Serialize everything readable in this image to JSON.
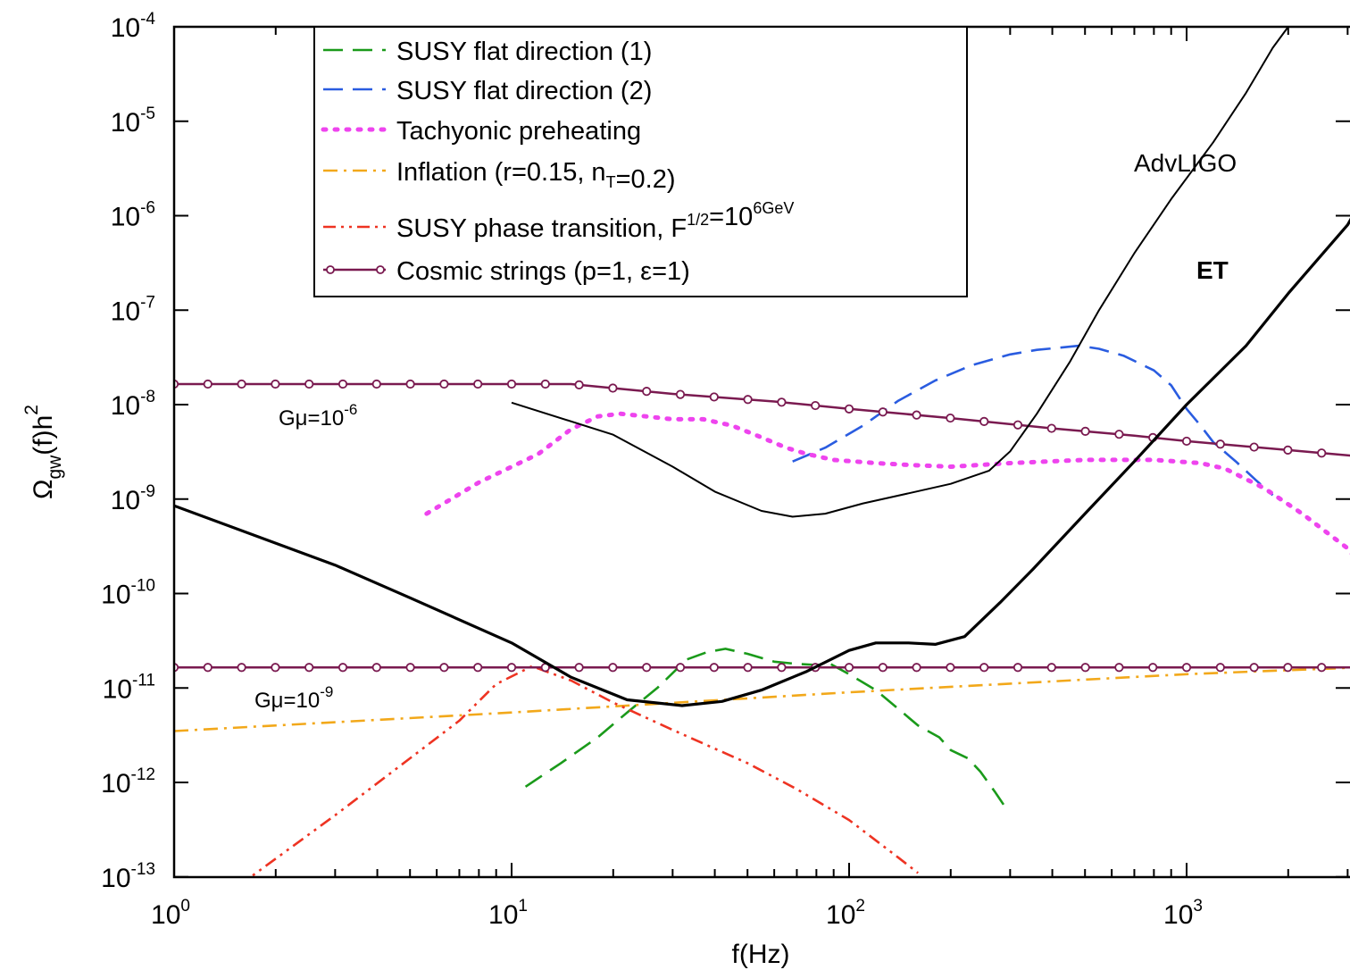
{
  "chart_data": {
    "type": "line",
    "xlabel": "f(Hz)",
    "ylabel": "Ω_gw(f)h^2",
    "x_scale": "log",
    "y_scale": "log",
    "xlim": [
      1,
      4000
    ],
    "ylim": [
      1e-13,
      0.0001
    ],
    "x_ticks": [
      {
        "value": 1,
        "base": "10",
        "exp": "0"
      },
      {
        "value": 10,
        "base": "10",
        "exp": "1"
      },
      {
        "value": 100,
        "base": "10",
        "exp": "2"
      },
      {
        "value": 1000,
        "base": "10",
        "exp": "3"
      }
    ],
    "y_ticks": [
      {
        "value": 0.0001,
        "base": "10",
        "exp": "-4"
      },
      {
        "value": 1e-05,
        "base": "10",
        "exp": "-5"
      },
      {
        "value": 1e-06,
        "base": "10",
        "exp": "-6"
      },
      {
        "value": 1e-07,
        "base": "10",
        "exp": "-7"
      },
      {
        "value": 1e-08,
        "base": "10",
        "exp": "-8"
      },
      {
        "value": 1e-09,
        "base": "10",
        "exp": "-9"
      },
      {
        "value": 1e-10,
        "base": "10",
        "exp": "-10"
      },
      {
        "value": 1e-11,
        "base": "10",
        "exp": "-11"
      },
      {
        "value": 1e-12,
        "base": "10",
        "exp": "-12"
      },
      {
        "value": 1e-13,
        "base": "10",
        "exp": "-13"
      }
    ],
    "grid": false,
    "legend_position": "top-left",
    "series": [
      {
        "name": "SUSY flat direction (1)",
        "color": "#1a9a1a",
        "style": "dashed",
        "points": [
          [
            11,
            9e-13
          ],
          [
            14,
            1.6e-12
          ],
          [
            18,
            3e-12
          ],
          [
            22,
            5.5e-12
          ],
          [
            27,
            1e-11
          ],
          [
            33,
            2e-11
          ],
          [
            38,
            2.4e-11
          ],
          [
            43,
            2.6e-11
          ],
          [
            50,
            2.3e-11
          ],
          [
            60,
            1.9e-11
          ],
          [
            70,
            1.8e-11
          ],
          [
            80,
            1.75e-11
          ],
          [
            88,
            1.8e-11
          ],
          [
            100,
            1.4e-11
          ],
          [
            120,
            9.5e-12
          ],
          [
            140,
            6e-12
          ],
          [
            160,
            4e-12
          ],
          [
            185,
            3e-12
          ],
          [
            200,
            2.2e-12
          ],
          [
            225,
            1.8e-12
          ],
          [
            245,
            1.3e-12
          ],
          [
            270,
            8e-13
          ],
          [
            290,
            5.5e-13
          ]
        ]
      },
      {
        "name": "SUSY flat direction (2)",
        "color": "#2a5ce0",
        "style": "dashed",
        "points": [
          [
            68,
            2.5e-09
          ],
          [
            85,
            3.5e-09
          ],
          [
            110,
            6e-09
          ],
          [
            140,
            1.1e-08
          ],
          [
            180,
            1.8e-08
          ],
          [
            230,
            2.6e-08
          ],
          [
            300,
            3.4e-08
          ],
          [
            360,
            3.8e-08
          ],
          [
            420,
            4e-08
          ],
          [
            480,
            4.2e-08
          ],
          [
            550,
            3.9e-08
          ],
          [
            650,
            3.3e-08
          ],
          [
            800,
            2.3e-08
          ],
          [
            900,
            1.6e-08
          ],
          [
            1000,
            9e-09
          ],
          [
            1100,
            6e-09
          ],
          [
            1200,
            4e-09
          ],
          [
            1400,
            2.5e-09
          ],
          [
            1600,
            1.6e-09
          ],
          [
            1800,
            1.1e-09
          ]
        ]
      },
      {
        "name": "Tachyonic preheating",
        "color": "#ee44ee",
        "style": "dotted",
        "points": [
          [
            5.6,
            7e-10
          ],
          [
            8,
            1.5e-09
          ],
          [
            12,
            3e-09
          ],
          [
            15,
            5.5e-09
          ],
          [
            18,
            7.5e-09
          ],
          [
            21,
            8e-09
          ],
          [
            25,
            7.5e-09
          ],
          [
            30,
            7e-09
          ],
          [
            37,
            7e-09
          ],
          [
            45,
            6e-09
          ],
          [
            55,
            4.5e-09
          ],
          [
            65,
            3.5e-09
          ],
          [
            75,
            3e-09
          ],
          [
            90,
            2.6e-09
          ],
          [
            120,
            2.4e-09
          ],
          [
            150,
            2.3e-09
          ],
          [
            200,
            2.2e-09
          ],
          [
            300,
            2.4e-09
          ],
          [
            500,
            2.6e-09
          ],
          [
            800,
            2.6e-09
          ],
          [
            1100,
            2.4e-09
          ],
          [
            1300,
            2.1e-09
          ],
          [
            1700,
            1.3e-09
          ],
          [
            2200,
            7e-10
          ],
          [
            3000,
            3e-10
          ],
          [
            4000,
            8e-11
          ]
        ]
      },
      {
        "name": "Inflation (r=0.15, n_T=0.2)",
        "color": "#f2a81a",
        "style": "dashdot",
        "points": [
          [
            1,
            3.5e-12
          ],
          [
            10,
            5.5e-12
          ],
          [
            100,
            9e-12
          ],
          [
            1000,
            1.4e-11
          ],
          [
            4000,
            1.7e-11
          ]
        ]
      },
      {
        "name": "SUSY phase transition, F^1/2=10^6GeV",
        "color": "#ee3322",
        "style": "dashdotdot",
        "points": [
          [
            1.55,
            8e-14
          ],
          [
            3,
            4.5e-13
          ],
          [
            5,
            1.8e-12
          ],
          [
            7,
            4.5e-12
          ],
          [
            9,
            1.1e-11
          ],
          [
            11.5,
            1.7e-11
          ],
          [
            15,
            1.2e-11
          ],
          [
            20,
            7e-12
          ],
          [
            30,
            3.6e-12
          ],
          [
            50,
            1.6e-12
          ],
          [
            70,
            8.5e-13
          ],
          [
            100,
            4e-13
          ],
          [
            140,
            1.6e-13
          ],
          [
            160,
            1.1e-13
          ]
        ]
      },
      {
        "name": "Cosmic strings (p=1, ε=1)",
        "color": "#7a1a50",
        "style": "solid-circles",
        "points": [
          [
            1,
            1.65e-08
          ],
          [
            15,
            1.65e-08
          ],
          [
            30,
            1.3e-08
          ],
          [
            60,
            1.08e-08
          ],
          [
            100,
            9e-09
          ],
          [
            200,
            7.2e-09
          ],
          [
            400,
            5.6e-09
          ],
          [
            700,
            4.7e-09
          ],
          [
            1000,
            4.1e-09
          ],
          [
            2000,
            3.3e-09
          ],
          [
            4000,
            2.65e-09
          ]
        ]
      },
      {
        "name": "Cosmic strings Gμ=10^-9",
        "color": "#7a1a50",
        "style": "solid-circles",
        "points": [
          [
            1,
            1.65e-11
          ],
          [
            4000,
            1.65e-11
          ]
        ]
      },
      {
        "name": "AdvLIGO",
        "color": "#000000",
        "style": "solid-thin",
        "points": [
          [
            10,
            1.05e-08
          ],
          [
            20,
            4.8e-09
          ],
          [
            30,
            2.2e-09
          ],
          [
            40,
            1.2e-09
          ],
          [
            55,
            7.5e-10
          ],
          [
            68,
            6.5e-10
          ],
          [
            85,
            7e-10
          ],
          [
            110,
            9e-10
          ],
          [
            150,
            1.15e-09
          ],
          [
            200,
            1.45e-09
          ],
          [
            260,
            2e-09
          ],
          [
            300,
            3.2e-09
          ],
          [
            360,
            8e-09
          ],
          [
            450,
            2.8e-08
          ],
          [
            550,
            1e-07
          ],
          [
            700,
            4e-07
          ],
          [
            900,
            1.5e-06
          ],
          [
            1200,
            6e-06
          ],
          [
            1500,
            2e-05
          ],
          [
            1800,
            6e-05
          ],
          [
            2000,
            0.0001
          ]
        ]
      },
      {
        "name": "ET",
        "color": "#000000",
        "style": "solid-thick",
        "points": [
          [
            1,
            8.5e-10
          ],
          [
            3,
            2e-10
          ],
          [
            5,
            9e-11
          ],
          [
            10,
            3e-11
          ],
          [
            15,
            1.3e-11
          ],
          [
            22,
            7.5e-12
          ],
          [
            32,
            6.5e-12
          ],
          [
            42,
            7.2e-12
          ],
          [
            55,
            9.5e-12
          ],
          [
            75,
            1.5e-11
          ],
          [
            100,
            2.5e-11
          ],
          [
            120,
            3e-11
          ],
          [
            150,
            3e-11
          ],
          [
            180,
            2.9e-11
          ],
          [
            220,
            3.5e-11
          ],
          [
            280,
            8e-11
          ],
          [
            350,
            1.8e-10
          ],
          [
            500,
            7e-10
          ],
          [
            700,
            2.5e-09
          ],
          [
            1000,
            1e-08
          ],
          [
            1500,
            4.2e-08
          ],
          [
            2000,
            1.5e-07
          ],
          [
            3000,
            8e-07
          ],
          [
            4000,
            5e-06
          ]
        ]
      }
    ],
    "annotations": [
      {
        "id": "advligo",
        "text": "AdvLIGO"
      },
      {
        "id": "et",
        "text": "ET"
      },
      {
        "id": "gmu6",
        "base": "Gμ=10",
        "exp": "-6"
      },
      {
        "id": "gmu9",
        "base": "Gμ=10",
        "exp": "-9"
      }
    ],
    "legend": [
      {
        "text": "SUSY flat direction (1)",
        "series": 0
      },
      {
        "text": "SUSY flat direction (2)",
        "series": 1
      },
      {
        "text": "Tachyonic preheating",
        "series": 2
      },
      {
        "text": "Inflation (r=0.15, n_T=0.2)",
        "series": 3
      },
      {
        "text": "SUSY phase transition, F^1/2=10^6GeV",
        "series": 4
      },
      {
        "text": "Cosmic strings (p=1, ε=1)",
        "series": 5
      }
    ]
  }
}
